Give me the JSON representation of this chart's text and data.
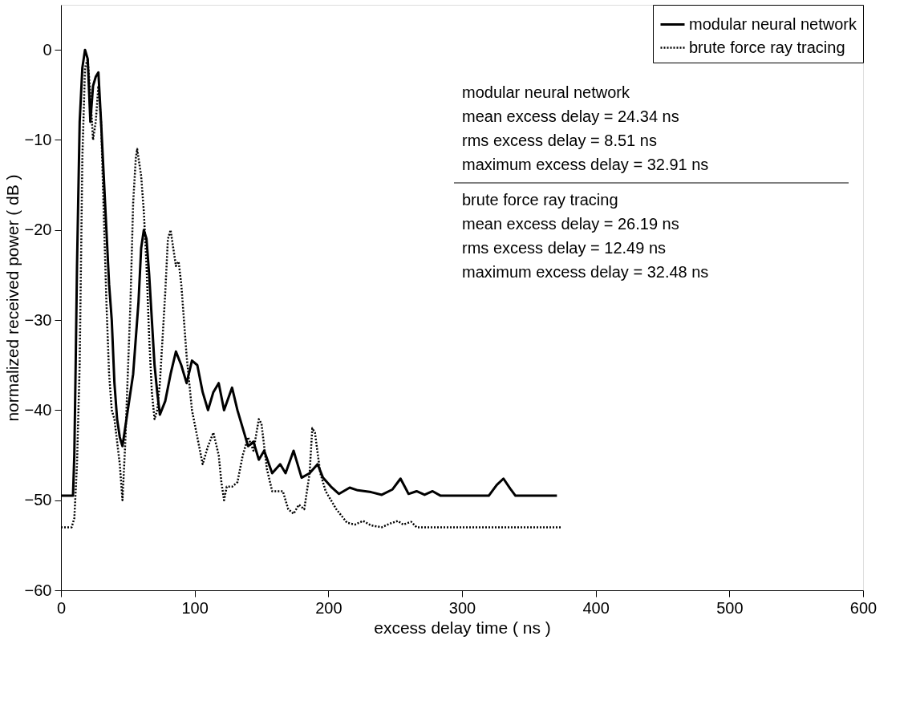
{
  "chart_data": {
    "type": "line",
    "xlabel": "excess delay time ( ns )",
    "ylabel": "normalized received power ( dB )",
    "xlim": [
      0,
      600
    ],
    "ylim": [
      -60,
      5
    ],
    "xticks": [
      0,
      100,
      200,
      300,
      400,
      500,
      600
    ],
    "yticks": [
      -60,
      -50,
      -40,
      -30,
      -20,
      -10,
      0
    ],
    "grid": false,
    "legend": "top right",
    "marker": "none",
    "annotations": [
      "modular neural network",
      "mean excess delay = 24.34 ns",
      "rms excess delay = 8.51 ns",
      "maximum excess delay = 32.91 ns",
      "brute force ray tracing",
      "mean excess delay = 26.19 ns",
      "rms excess delay = 12.49 ns",
      "maximum excess delay = 32.48 ns"
    ],
    "series": [
      {
        "name": "modular neural network",
        "color": "#000000",
        "line_style": "solid",
        "x": [
          0,
          9,
          10,
          11,
          12,
          14,
          16,
          18,
          20,
          22,
          24,
          26,
          28,
          30,
          32,
          34,
          36,
          38,
          40,
          42,
          44,
          46,
          48,
          50,
          54,
          58,
          60,
          62,
          64,
          66,
          68,
          70,
          72,
          74,
          78,
          82,
          86,
          90,
          94,
          98,
          102,
          106,
          110,
          114,
          118,
          122,
          128,
          132,
          136,
          140,
          144,
          148,
          152,
          158,
          164,
          168,
          174,
          180,
          186,
          192,
          196,
          202,
          208,
          216,
          222,
          232,
          240,
          248,
          254,
          260,
          266,
          272,
          278,
          284,
          320,
          326,
          331,
          336,
          340,
          371
        ],
        "values": [
          -49.5,
          -49.5,
          -45,
          -35,
          -24,
          -8,
          -2,
          0,
          -1,
          -8,
          -4,
          -3,
          -2.5,
          -8,
          -14,
          -20,
          -26,
          -30,
          -37,
          -41,
          -43,
          -44,
          -42,
          -40,
          -36,
          -28,
          -22,
          -20,
          -21,
          -25,
          -30,
          -35,
          -38,
          -40.5,
          -39,
          -36,
          -33.5,
          -35,
          -37,
          -34.5,
          -35,
          -38,
          -40,
          -38,
          -37,
          -40,
          -37.5,
          -40,
          -42,
          -44,
          -43.5,
          -45.5,
          -44.5,
          -47,
          -46,
          -47,
          -44.5,
          -47.5,
          -47,
          -46,
          -47.5,
          -48.5,
          -49.3,
          -48.6,
          -48.9,
          -49.1,
          -49.4,
          -48.8,
          -47.6,
          -49.3,
          -49,
          -49.4,
          -49,
          -49.5,
          -49.5,
          -48.3,
          -47.6,
          -48.7,
          -49.5,
          -49.5
        ]
      },
      {
        "name": "brute force ray tracing",
        "color": "#000000",
        "line_style": "dotted",
        "x": [
          0,
          8,
          10,
          12,
          14,
          16,
          18,
          20,
          22,
          24,
          26,
          28,
          30,
          32,
          34,
          36,
          38,
          40,
          44,
          46,
          48,
          50,
          52,
          54,
          56,
          57,
          60,
          62,
          64,
          66,
          68,
          70,
          72,
          74,
          78,
          80,
          82,
          84,
          86,
          88,
          90,
          94,
          98,
          102,
          106,
          110,
          114,
          118,
          120,
          122,
          124,
          128,
          132,
          136,
          140,
          144,
          148,
          150,
          154,
          158,
          166,
          170,
          174,
          178,
          182,
          186,
          188,
          190,
          194,
          198,
          206,
          214,
          220,
          226,
          232,
          240,
          246,
          252,
          256,
          262,
          266,
          375
        ],
        "values": [
          -53,
          -53,
          -52,
          -46,
          -35,
          -12,
          -2,
          -1,
          -5,
          -10,
          -8,
          -4,
          -8,
          -18,
          -28,
          -36,
          -40,
          -41,
          -46,
          -50,
          -44,
          -36,
          -28,
          -17,
          -12,
          -11,
          -14,
          -18,
          -24,
          -32,
          -38,
          -41,
          -40,
          -37,
          -27,
          -21,
          -20,
          -22,
          -24,
          -23.5,
          -26,
          -34,
          -40,
          -43,
          -46,
          -44,
          -42.5,
          -45,
          -48,
          -50,
          -48.5,
          -48.5,
          -48,
          -45,
          -43,
          -44.5,
          -41,
          -41.5,
          -46.5,
          -49,
          -49,
          -51,
          -51.5,
          -50.5,
          -51,
          -47,
          -42,
          -42.5,
          -47,
          -49,
          -51,
          -52.5,
          -52.7,
          -52.3,
          -52.8,
          -53,
          -52.6,
          -52.3,
          -52.7,
          -52.4,
          -53,
          -53
        ]
      }
    ]
  }
}
